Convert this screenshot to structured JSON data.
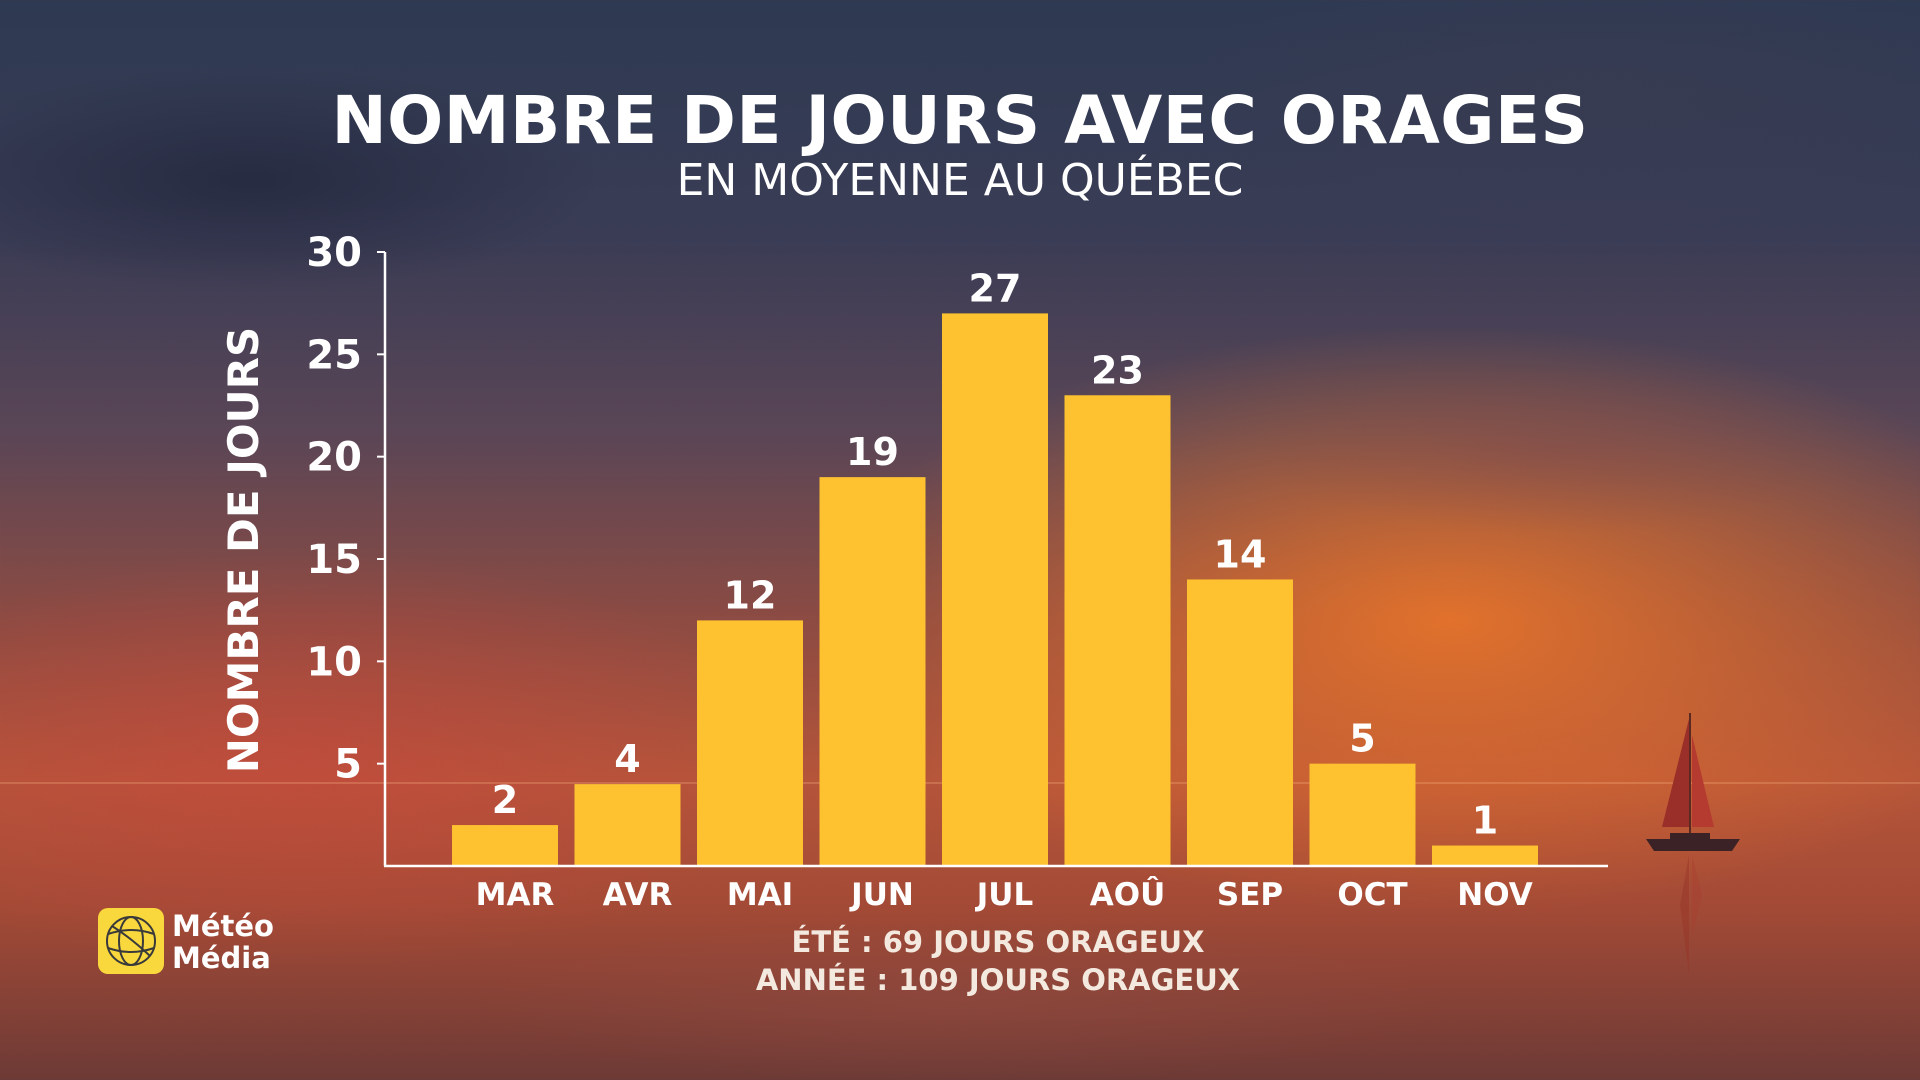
{
  "title": "NOMBRE DE JOURS AVEC ORAGES",
  "subtitle": "EN MOYENNE AU QUÉBEC",
  "colors": {
    "bar": "#fec230",
    "text": "#ffffff",
    "axis": "#ffffff"
  },
  "chart_data": {
    "type": "bar",
    "categories": [
      "MAR",
      "AVR",
      "MAI",
      "JUN",
      "JUL",
      "AOÛ",
      "SEP",
      "OCT",
      "NOV"
    ],
    "values": [
      2,
      4,
      12,
      19,
      27,
      23,
      14,
      5,
      1
    ],
    "ylabel": "NOMBRE DE JOURS",
    "xlabel": "",
    "ylim": [
      0,
      30
    ],
    "yticks": [
      5,
      10,
      15,
      20,
      25,
      30
    ],
    "grid": false,
    "data_labels": true
  },
  "footnotes": [
    "ÉTÉ : 69 JOURS ORAGEUX",
    "ANNÉE : 109 JOURS ORAGEUX"
  ],
  "logo": {
    "line1": "Météo",
    "line2": "Média",
    "icon": "meteomedia-globe-icon"
  },
  "decor": {
    "icon": "sailboat-icon"
  }
}
